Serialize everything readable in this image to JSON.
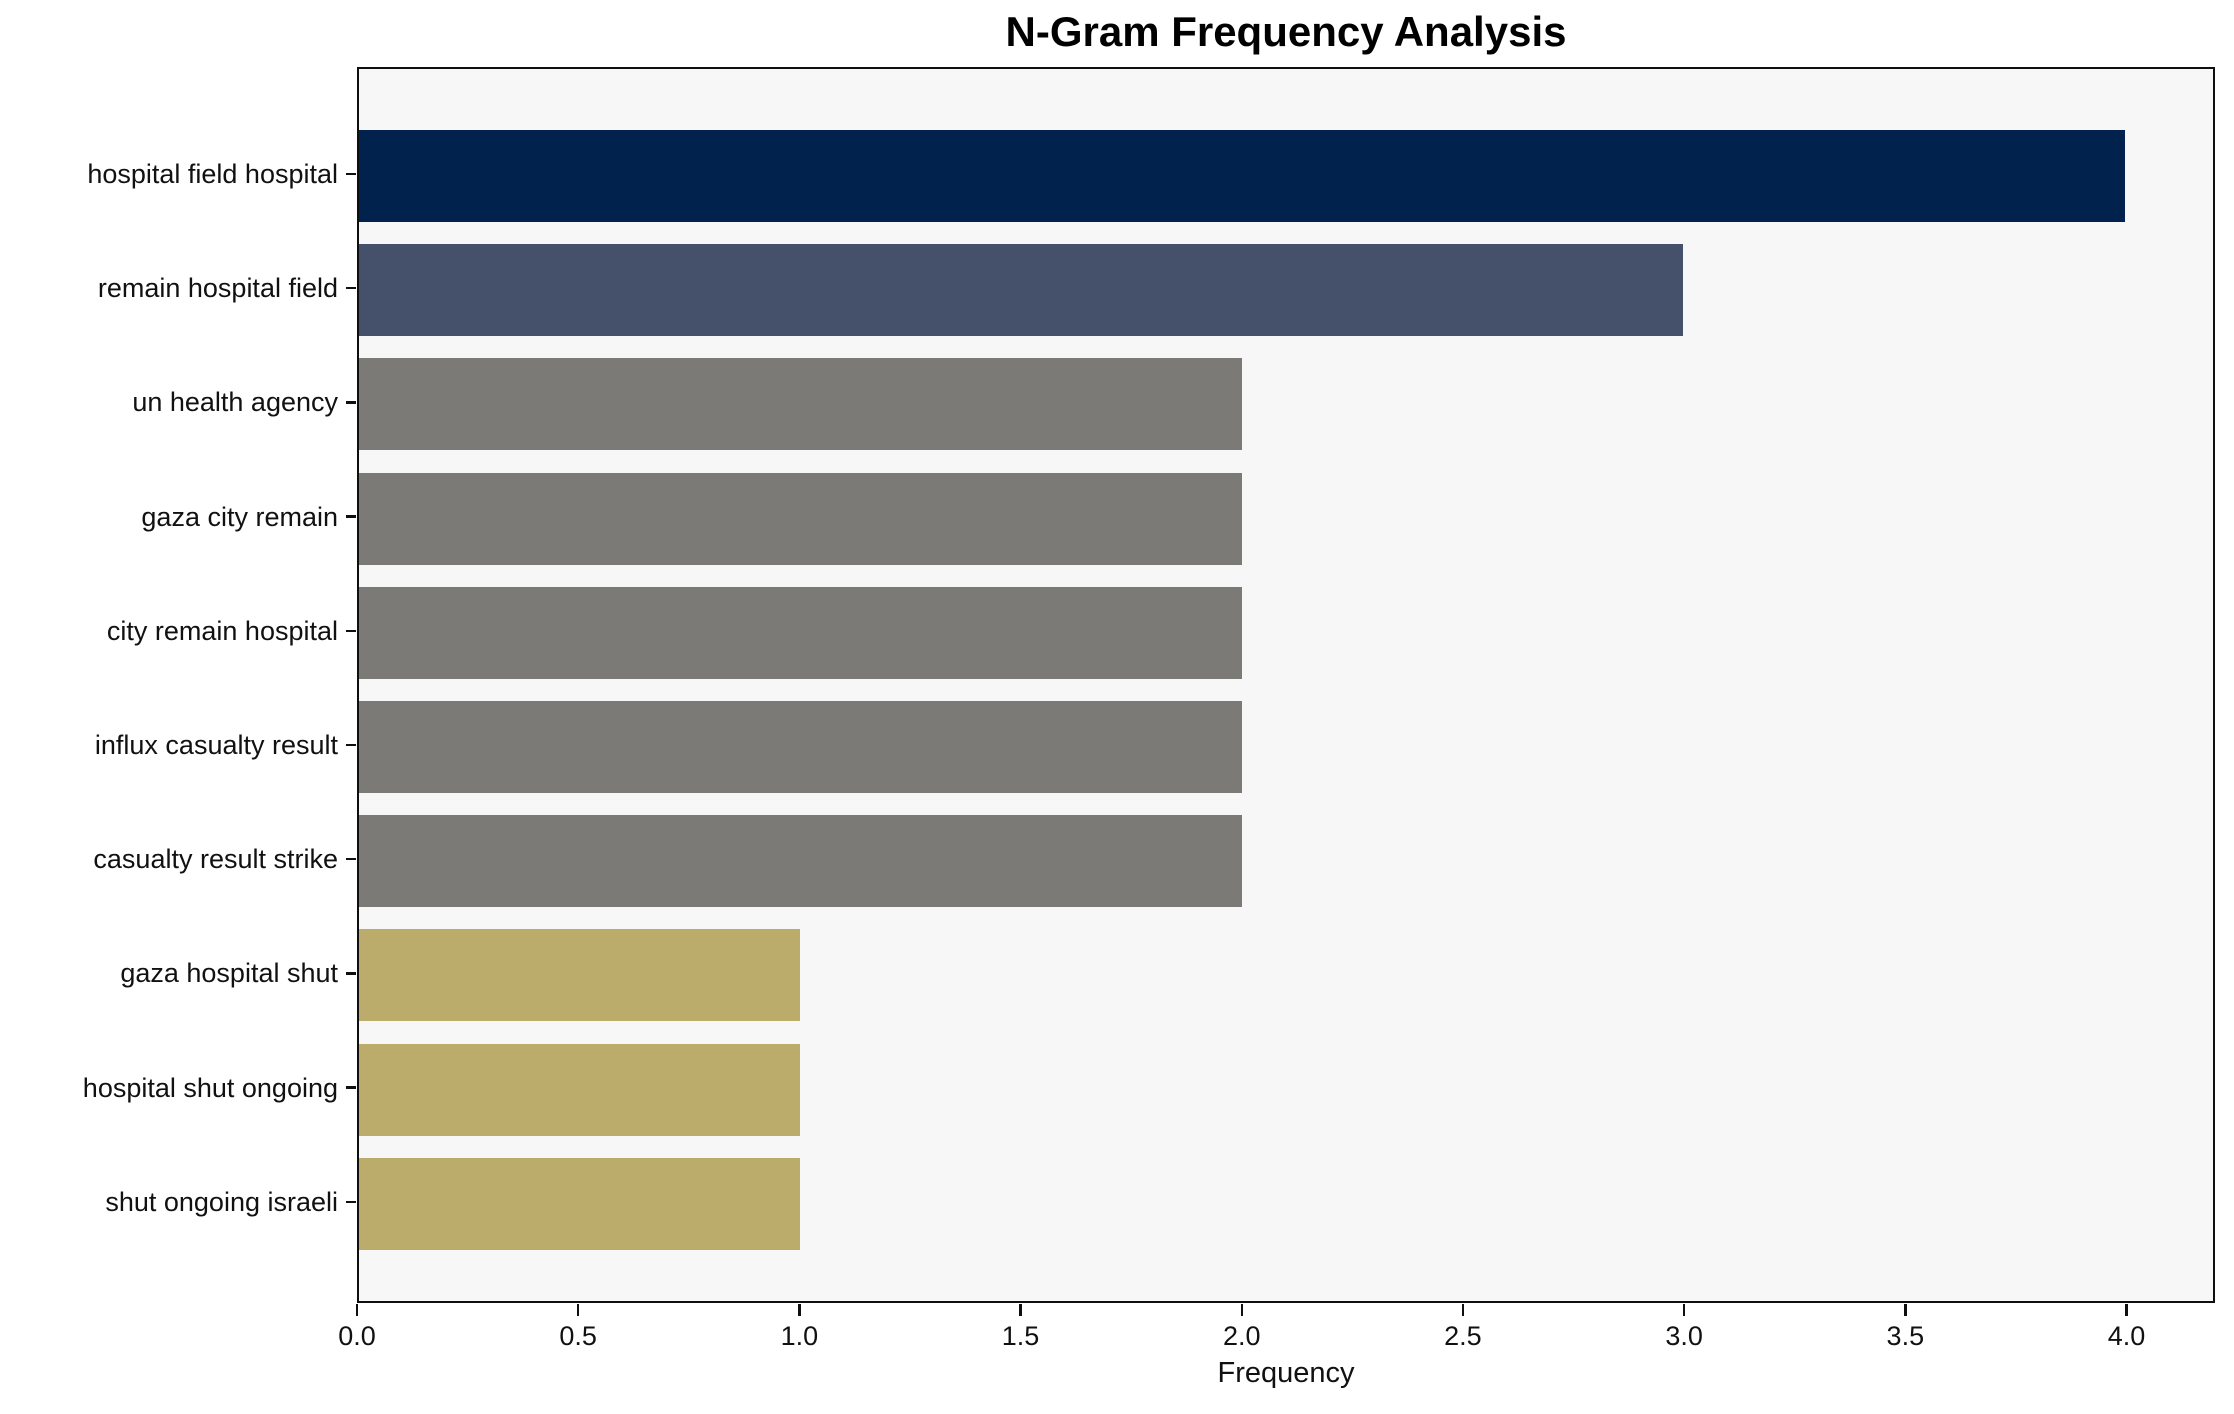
{
  "chart_data": {
    "type": "bar",
    "orientation": "horizontal",
    "title": "N-Gram Frequency Analysis",
    "xlabel": "Frequency",
    "ylabel": "",
    "categories": [
      "hospital field hospital",
      "remain hospital field",
      "un health agency",
      "gaza city remain",
      "city remain hospital",
      "influx casualty result",
      "casualty result strike",
      "gaza hospital shut",
      "hospital shut ongoing",
      "shut ongoing israeli"
    ],
    "values": [
      4,
      3,
      2,
      2,
      2,
      2,
      2,
      1,
      1,
      1
    ],
    "bar_colors": [
      "#00224d",
      "#45506b",
      "#7b7a77",
      "#7b7a77",
      "#7b7a77",
      "#7b7a77",
      "#7b7a77",
      "#bbac6b",
      "#bbac6b",
      "#bbac6b"
    ],
    "xticks": [
      "0.0",
      "0.5",
      "1.0",
      "1.5",
      "2.0",
      "2.5",
      "3.0",
      "3.5",
      "4.0"
    ],
    "xtick_values": [
      0,
      0.5,
      1,
      1.5,
      2,
      2.5,
      3,
      3.5,
      4
    ],
    "xlim": [
      0,
      4.2
    ],
    "grid": false,
    "legend": false,
    "plot_background": "#f7f7f8",
    "figure_background": "#ffffff",
    "spine_color": "#0f0f0f"
  }
}
